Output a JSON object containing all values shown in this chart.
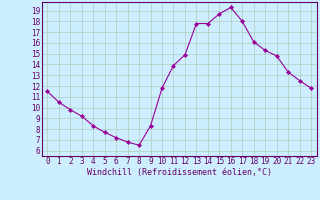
{
  "x": [
    0,
    1,
    2,
    3,
    4,
    5,
    6,
    7,
    8,
    9,
    10,
    11,
    12,
    13,
    14,
    15,
    16,
    17,
    18,
    19,
    20,
    21,
    22,
    23
  ],
  "y": [
    11.5,
    10.5,
    9.8,
    9.2,
    8.3,
    7.7,
    7.2,
    6.8,
    6.5,
    8.3,
    11.8,
    13.9,
    14.9,
    17.8,
    17.8,
    18.7,
    19.3,
    18.0,
    16.1,
    15.3,
    14.8,
    13.3,
    12.5,
    11.8
  ],
  "line_color": "#990099",
  "marker_color": "#990099",
  "bg_color": "#cceeff",
  "grid_color": "#b0ccbb",
  "xlabel": "Windchill (Refroidissement éolien,°C)",
  "ylabel_ticks": [
    6,
    7,
    8,
    9,
    10,
    11,
    12,
    13,
    14,
    15,
    16,
    17,
    18,
    19
  ],
  "xtick_labels": [
    "0",
    "1",
    "2",
    "3",
    "4",
    "5",
    "6",
    "7",
    "8",
    "9",
    "10",
    "11",
    "12",
    "13",
    "14",
    "15",
    "16",
    "17",
    "18",
    "19",
    "20",
    "21",
    "22",
    "23"
  ],
  "ylim": [
    5.5,
    19.8
  ],
  "xlim": [
    -0.5,
    23.5
  ],
  "tick_color": "#660066",
  "spine_color": "#660066",
  "font_family": "monospace",
  "tick_fontsize": 5.5,
  "xlabel_fontsize": 6.0
}
